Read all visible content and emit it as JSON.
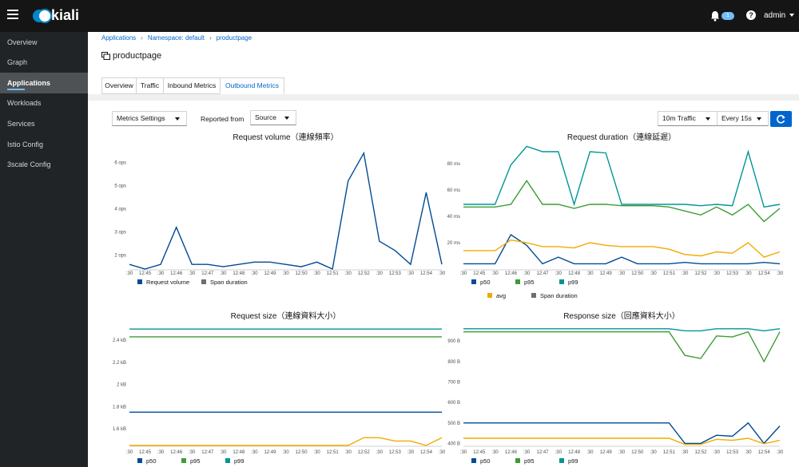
{
  "header": {
    "logo_text": "kiali",
    "notification_count": "1",
    "help_symbol": "?",
    "user": "admin"
  },
  "sidebar": {
    "items": [
      {
        "label": "Overview"
      },
      {
        "label": "Graph"
      },
      {
        "label": "Applications",
        "active": true
      },
      {
        "label": "Workloads"
      },
      {
        "label": "Services"
      },
      {
        "label": "Istio Config"
      },
      {
        "label": "3scale Config"
      }
    ]
  },
  "breadcrumb": [
    "Applications",
    "Namespace: default",
    "productpage"
  ],
  "page_title": "productpage",
  "tabs": [
    "Overview",
    "Traffic",
    "Inbound Metrics",
    "Outbound Metrics"
  ],
  "active_tab": "Outbound Metrics",
  "toolbar": {
    "metrics_settings": "Metrics Settings",
    "reported_from_label": "Reported from",
    "reported_from_value": "Source",
    "traffic_range": "10m Traffic",
    "refresh_interval": "Every 15s"
  },
  "colors": {
    "p50": "#004b95",
    "p95": "#3e9c35",
    "p99": "#009596",
    "avg": "#f0ab00",
    "span": "#6a6e73",
    "accent": "#0066cc"
  },
  "chart_data": [
    {
      "type": "line",
      "title": "Request volume（連線頻率）",
      "x": [
        ":30",
        "12:45",
        ":30",
        "12:46",
        ":30",
        "12:47",
        ":30",
        "12:48",
        ":30",
        "12:49",
        ":30",
        "12:50",
        ":30",
        "12:51",
        ":30",
        "12:52",
        ":30",
        "12:53",
        ":30",
        "12:54",
        ":30"
      ],
      "yticks": [
        "2 ops",
        "3 ops",
        "4 ops",
        "5 ops",
        "6 ops"
      ],
      "ylim": [
        1.4,
        6.6
      ],
      "series": [
        {
          "name": "Request volume",
          "color": "#004b95",
          "values": [
            1.6,
            1.4,
            1.6,
            3.2,
            1.6,
            1.6,
            1.5,
            1.6,
            1.7,
            1.7,
            1.6,
            1.5,
            1.7,
            1.4,
            5.2,
            6.4,
            2.6,
            2.2,
            1.6,
            4.7,
            1.6
          ]
        }
      ],
      "legend": [
        {
          "name": "Request volume",
          "color": "#004b95"
        },
        {
          "name": "Span duration",
          "color": "#6a6e73"
        }
      ]
    },
    {
      "type": "line",
      "title": "Request duration（連線延遲）",
      "x": [
        ":30",
        "12:45",
        ":30",
        "12:46",
        ":30",
        "12:47",
        ":30",
        "12:48",
        ":30",
        "12:49",
        ":30",
        "12:50",
        ":30",
        "12:51",
        ":30",
        "12:52",
        ":30",
        "12:53",
        ":30",
        "12:54",
        ":30"
      ],
      "yticks": [
        "20 ms",
        "40 ms",
        "60 ms",
        "80 ms"
      ],
      "ylim": [
        0,
        92
      ],
      "series": [
        {
          "name": "p50",
          "color": "#004b95",
          "values": [
            4,
            4,
            4,
            26,
            18,
            4,
            9,
            4,
            4,
            4,
            9,
            4,
            4,
            4,
            5,
            4,
            4,
            4,
            4,
            5,
            4
          ]
        },
        {
          "name": "p95",
          "color": "#3e9c35",
          "values": [
            47,
            47,
            47,
            49,
            67,
            49,
            49,
            46,
            49,
            49,
            48,
            48,
            48,
            47,
            44,
            41,
            47,
            41,
            49,
            36,
            46
          ]
        },
        {
          "name": "p99",
          "color": "#009596",
          "values": [
            49,
            49,
            49,
            79,
            93,
            89,
            89,
            49,
            89,
            88,
            49,
            49,
            49,
            49,
            49,
            48,
            49,
            48,
            89,
            47,
            49
          ]
        },
        {
          "name": "avg",
          "color": "#f0ab00",
          "values": [
            14,
            14,
            14,
            22,
            20,
            17,
            17,
            16,
            20,
            18,
            17,
            17,
            17,
            15,
            11,
            10,
            13,
            12,
            20,
            9,
            13
          ]
        }
      ],
      "legend": [
        {
          "name": "p50",
          "color": "#004b95"
        },
        {
          "name": "p95",
          "color": "#3e9c35"
        },
        {
          "name": "p99",
          "color": "#009596"
        },
        {
          "name": "avg",
          "color": "#f0ab00"
        },
        {
          "name": "Span duration",
          "color": "#6a6e73"
        }
      ]
    },
    {
      "type": "line",
      "title": "Request size（連線資料大小）",
      "x": [
        ":30",
        "12:45",
        ":30",
        "12:46",
        ":30",
        "12:47",
        ":30",
        "12:48",
        ":30",
        "12:49",
        ":30",
        "12:50",
        ":30",
        "12:51",
        ":30",
        "12:52",
        ":30",
        "12:53",
        ":30",
        "12:54",
        ":30"
      ],
      "yticks": [
        "1.6 kB",
        "1.8 kB",
        "2 kB",
        "2.2 kB",
        "2.4 kB"
      ],
      "ylim": [
        1.45,
        2.53
      ],
      "series": [
        {
          "name": "p50",
          "color": "#004b95",
          "values": [
            1.75,
            1.75,
            1.75,
            1.75,
            1.75,
            1.75,
            1.75,
            1.75,
            1.75,
            1.75,
            1.75,
            1.75,
            1.75,
            1.75,
            1.75,
            1.75,
            1.75,
            1.75,
            1.75,
            1.75,
            1.75
          ]
        },
        {
          "name": "p95",
          "color": "#3e9c35",
          "values": [
            2.43,
            2.43,
            2.43,
            2.43,
            2.43,
            2.43,
            2.43,
            2.43,
            2.43,
            2.43,
            2.43,
            2.43,
            2.43,
            2.43,
            2.43,
            2.43,
            2.43,
            2.43,
            2.43,
            2.43,
            2.43
          ]
        },
        {
          "name": "p99",
          "color": "#009596",
          "values": [
            2.5,
            2.5,
            2.5,
            2.5,
            2.5,
            2.5,
            2.5,
            2.5,
            2.5,
            2.5,
            2.5,
            2.5,
            2.5,
            2.5,
            2.5,
            2.5,
            2.5,
            2.5,
            2.5,
            2.5,
            2.5
          ]
        },
        {
          "name": "avg",
          "color": "#f0ab00",
          "values": [
            1.45,
            1.45,
            1.45,
            1.45,
            1.45,
            1.45,
            1.45,
            1.45,
            1.45,
            1.45,
            1.45,
            1.45,
            1.45,
            1.45,
            1.45,
            1.52,
            1.52,
            1.49,
            1.49,
            1.45,
            1.52
          ]
        }
      ],
      "legend": [
        {
          "name": "p50",
          "color": "#004b95"
        },
        {
          "name": "p95",
          "color": "#3e9c35"
        },
        {
          "name": "p99",
          "color": "#009596"
        }
      ]
    },
    {
      "type": "line",
      "title": "Response size（回應資料大小）",
      "x": [
        ":30",
        "12:45",
        ":30",
        "12:46",
        ":30",
        "12:47",
        ":30",
        "12:48",
        ":30",
        "12:49",
        ":30",
        "12:50",
        ":30",
        "12:51",
        ":30",
        "12:52",
        ":30",
        "12:53",
        ":30",
        "12:54",
        ":30"
      ],
      "yticks": [
        "400 B",
        "500 B",
        "600 B",
        "700 B",
        "800 B",
        "900 B"
      ],
      "ylim": [
        390,
        975
      ],
      "series": [
        {
          "name": "p50",
          "color": "#004b95",
          "values": [
            500,
            500,
            500,
            500,
            500,
            500,
            500,
            500,
            500,
            500,
            500,
            500,
            500,
            500,
            400,
            400,
            440,
            435,
            500,
            400,
            485
          ]
        },
        {
          "name": "p95",
          "color": "#3e9c35",
          "values": [
            945,
            945,
            945,
            945,
            945,
            945,
            945,
            945,
            945,
            945,
            945,
            945,
            945,
            945,
            830,
            815,
            925,
            920,
            945,
            800,
            945
          ]
        },
        {
          "name": "p99",
          "color": "#009596",
          "values": [
            960,
            960,
            960,
            960,
            960,
            960,
            960,
            960,
            960,
            960,
            960,
            960,
            960,
            960,
            950,
            950,
            960,
            960,
            960,
            950,
            960
          ]
        },
        {
          "name": "avg",
          "color": "#f0ab00",
          "values": [
            425,
            425,
            425,
            425,
            425,
            425,
            425,
            425,
            425,
            425,
            425,
            425,
            425,
            425,
            395,
            395,
            420,
            415,
            425,
            398,
            415
          ]
        }
      ],
      "legend": [
        {
          "name": "p50",
          "color": "#004b95"
        },
        {
          "name": "p95",
          "color": "#3e9c35"
        },
        {
          "name": "p99",
          "color": "#009596"
        }
      ]
    }
  ]
}
